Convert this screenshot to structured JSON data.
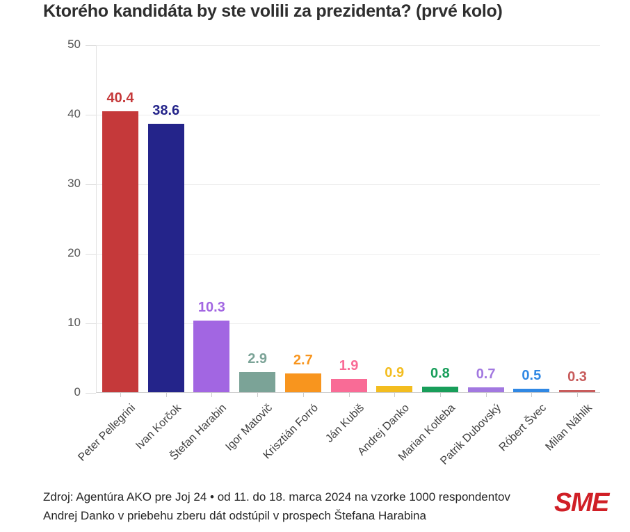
{
  "chart_data": {
    "type": "bar",
    "title": "Ktorého kandidáta by ste volili za prezidenta? (prvé kolo)",
    "categories": [
      "Peter Pellegrini",
      "Ivan Korčok",
      "Štefan Harabin",
      "Igor Matovič",
      "Krisztián Forró",
      "Ján Kubiš",
      "Andrej Danko",
      "Marian Kotleba",
      "Patrik Dubovský",
      "Róbert Švec",
      "Milan Náhlik"
    ],
    "values": [
      40.4,
      38.6,
      10.3,
      2.9,
      2.7,
      1.9,
      0.9,
      0.8,
      0.7,
      0.5,
      0.3
    ],
    "bar_colors": [
      "#c5393a",
      "#24248a",
      "#a266e2",
      "#7ba397",
      "#f8951e",
      "#f96b96",
      "#f3bd1f",
      "#189e5a",
      "#a278e0",
      "#3088e4",
      "#c85c5c"
    ],
    "value_labels_shown": true,
    "xlabel": "",
    "ylabel": "",
    "ylim": [
      0,
      50
    ],
    "yticks": [
      0,
      10,
      20,
      30,
      40,
      50
    ],
    "grid": "horizontal",
    "legend": "none"
  },
  "footer": {
    "source_line": "Zdroj: Agentúra AKO pre Joj 24 • od 11. do 18. marca 2024 na vzorke 1000 respondentov",
    "note_line": "Andrej Danko v priebehu zberu dát odstúpil v prospech Štefana Harabina",
    "logo_text": "SME",
    "logo_color": "#d01f26"
  },
  "colors": {
    "background": "#ffffff",
    "title_text": "#2e2e2e",
    "axis_label_text": "#555555",
    "category_label_text": "#3e3e3e",
    "gridline": "#ececec",
    "baseline": "#cccccc"
  }
}
